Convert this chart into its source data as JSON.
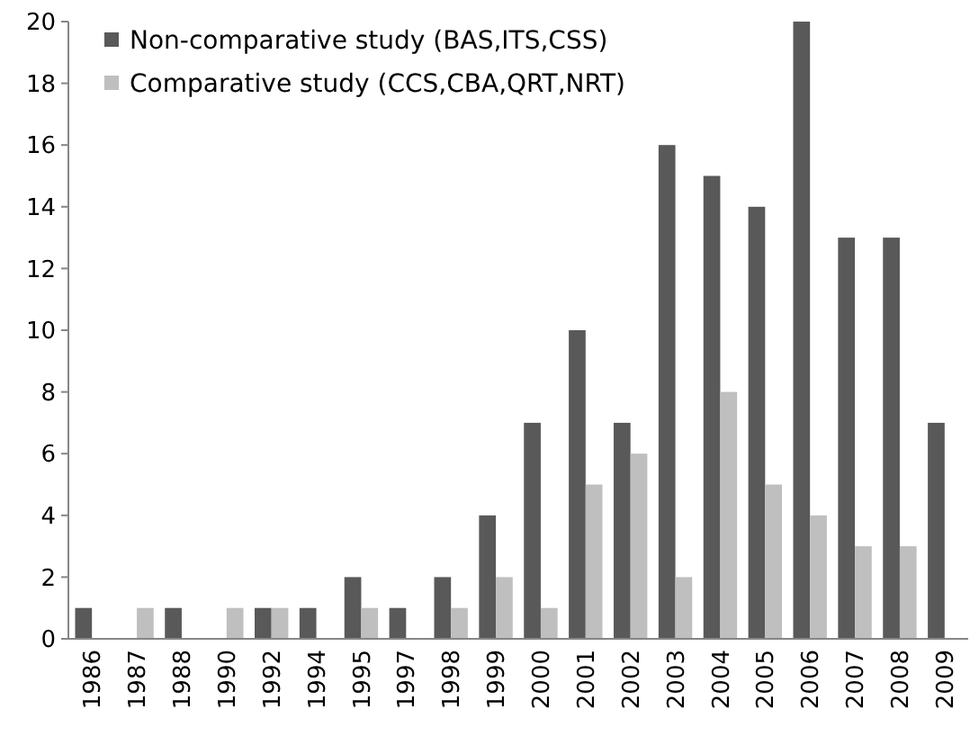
{
  "chart_data": {
    "type": "bar",
    "categories": [
      "1986",
      "1987",
      "1988",
      "1990",
      "1992",
      "1994",
      "1995",
      "1997",
      "1998",
      "1999",
      "2000",
      "2001",
      "2002",
      "2003",
      "2004",
      "2005",
      "2006",
      "2007",
      "2008",
      "2009"
    ],
    "series": [
      {
        "name": "Non-comparative study (BAS,ITS,CSS)",
        "color": "#595959",
        "values": [
          1,
          0,
          1,
          0,
          1,
          1,
          2,
          1,
          2,
          4,
          7,
          10,
          7,
          16,
          15,
          14,
          20,
          13,
          13,
          7
        ]
      },
      {
        "name": "Comparative study (CCS,CBA,QRT,NRT)",
        "color": "#bfbfbf",
        "values": [
          0,
          1,
          0,
          1,
          1,
          0,
          1,
          0,
          1,
          2,
          1,
          5,
          6,
          2,
          8,
          5,
          4,
          3,
          3,
          0
        ]
      }
    ],
    "ylim": [
      0,
      20
    ],
    "yticks": [
      0,
      2,
      4,
      6,
      8,
      10,
      12,
      14,
      16,
      18,
      20
    ],
    "grid": false,
    "legend": "top left"
  }
}
